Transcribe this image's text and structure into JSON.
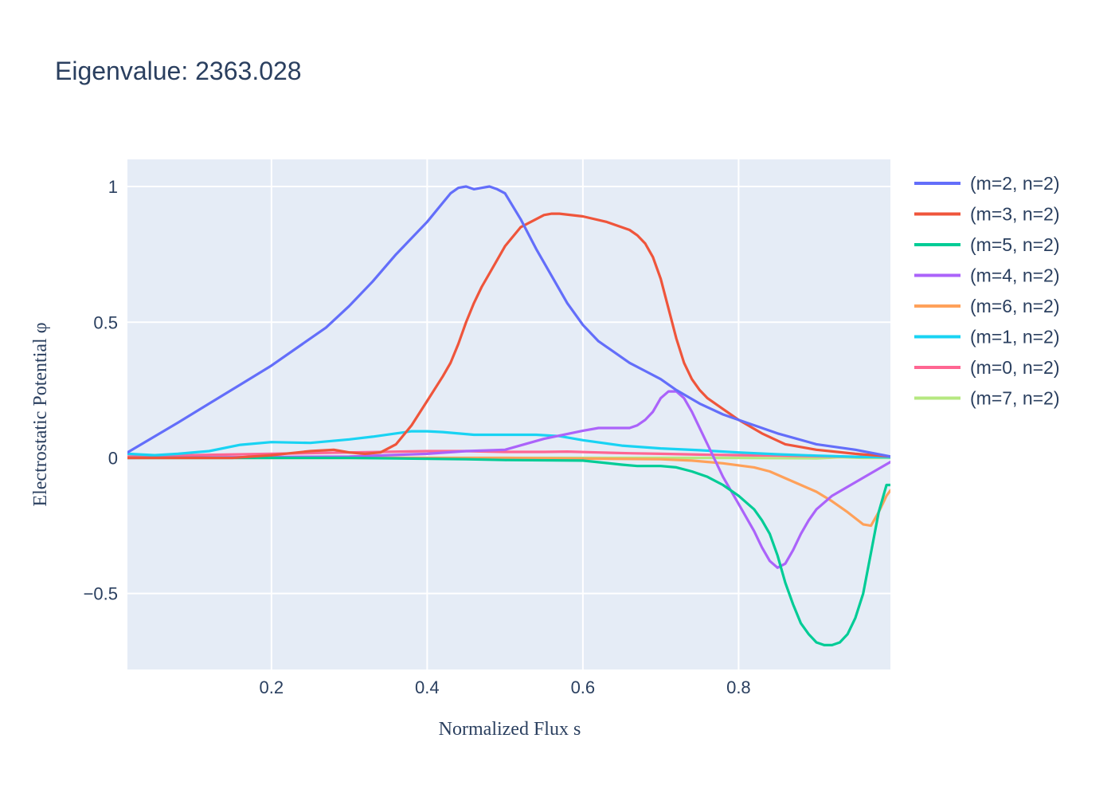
{
  "chart_data": {
    "type": "line",
    "title": "Eigenvalue: 2363.028",
    "xlabel": "Normalized Flux s",
    "ylabel": "Electrostatic Potential φ",
    "xlim": [
      0.015,
      0.995
    ],
    "ylim": [
      -0.78,
      1.1
    ],
    "x_ticks": [
      0.2,
      0.4,
      0.6,
      0.8
    ],
    "x_tick_labels": [
      "0.2",
      "0.4",
      "0.6",
      "0.8"
    ],
    "y_ticks": [
      -0.5,
      0,
      0.5,
      1
    ],
    "y_tick_labels": [
      "−0.5",
      "0",
      "0.5",
      "1"
    ],
    "grid": true,
    "legend_position": "right",
    "plot_background": "#e5ecf6",
    "series": [
      {
        "name": "(m=2, n=2)",
        "color": "#636efa",
        "x": [
          0.015,
          0.08,
          0.12,
          0.16,
          0.2,
          0.24,
          0.27,
          0.3,
          0.33,
          0.36,
          0.4,
          0.42,
          0.43,
          0.44,
          0.45,
          0.46,
          0.47,
          0.48,
          0.49,
          0.5,
          0.52,
          0.54,
          0.56,
          0.58,
          0.6,
          0.62,
          0.64,
          0.66,
          0.68,
          0.7,
          0.72,
          0.75,
          0.78,
          0.81,
          0.85,
          0.9,
          0.95,
          0.995
        ],
        "y": [
          0.02,
          0.13,
          0.2,
          0.27,
          0.34,
          0.42,
          0.48,
          0.56,
          0.65,
          0.75,
          0.87,
          0.94,
          0.975,
          0.995,
          1.0,
          0.99,
          0.995,
          1.0,
          0.99,
          0.975,
          0.88,
          0.77,
          0.67,
          0.57,
          0.49,
          0.43,
          0.39,
          0.35,
          0.32,
          0.29,
          0.25,
          0.2,
          0.16,
          0.13,
          0.09,
          0.05,
          0.03,
          0.005
        ]
      },
      {
        "name": "(m=3, n=2)",
        "color": "#EF553B",
        "x": [
          0.015,
          0.1,
          0.15,
          0.2,
          0.25,
          0.28,
          0.3,
          0.32,
          0.34,
          0.36,
          0.38,
          0.4,
          0.42,
          0.43,
          0.44,
          0.45,
          0.46,
          0.47,
          0.48,
          0.5,
          0.52,
          0.54,
          0.55,
          0.56,
          0.57,
          0.6,
          0.63,
          0.66,
          0.67,
          0.68,
          0.69,
          0.7,
          0.71,
          0.72,
          0.73,
          0.74,
          0.75,
          0.76,
          0.78,
          0.8,
          0.83,
          0.86,
          0.9,
          0.95,
          0.995
        ],
        "y": [
          0.0,
          0.0,
          0.0,
          0.01,
          0.025,
          0.03,
          0.02,
          0.015,
          0.02,
          0.05,
          0.12,
          0.21,
          0.3,
          0.35,
          0.42,
          0.5,
          0.57,
          0.63,
          0.68,
          0.78,
          0.85,
          0.88,
          0.895,
          0.9,
          0.9,
          0.89,
          0.87,
          0.84,
          0.82,
          0.79,
          0.74,
          0.66,
          0.55,
          0.44,
          0.35,
          0.29,
          0.25,
          0.22,
          0.18,
          0.14,
          0.09,
          0.05,
          0.03,
          0.015,
          0.005
        ]
      },
      {
        "name": "(m=5, n=2)",
        "color": "#00cc96",
        "x": [
          0.015,
          0.3,
          0.45,
          0.5,
          0.6,
          0.65,
          0.67,
          0.7,
          0.72,
          0.74,
          0.76,
          0.78,
          0.8,
          0.82,
          0.83,
          0.84,
          0.85,
          0.86,
          0.87,
          0.88,
          0.89,
          0.9,
          0.91,
          0.92,
          0.93,
          0.94,
          0.95,
          0.96,
          0.97,
          0.98,
          0.99,
          0.995
        ],
        "y": [
          0.0,
          0.0,
          -0.005,
          -0.008,
          -0.01,
          -0.025,
          -0.03,
          -0.03,
          -0.035,
          -0.05,
          -0.07,
          -0.1,
          -0.14,
          -0.19,
          -0.23,
          -0.28,
          -0.36,
          -0.46,
          -0.54,
          -0.61,
          -0.65,
          -0.68,
          -0.69,
          -0.69,
          -0.68,
          -0.65,
          -0.59,
          -0.5,
          -0.35,
          -0.2,
          -0.1,
          -0.1
        ]
      },
      {
        "name": "(m=4, n=2)",
        "color": "#ab63fa",
        "x": [
          0.015,
          0.3,
          0.4,
          0.45,
          0.5,
          0.55,
          0.6,
          0.62,
          0.66,
          0.67,
          0.68,
          0.69,
          0.7,
          0.71,
          0.72,
          0.73,
          0.74,
          0.76,
          0.78,
          0.8,
          0.82,
          0.83,
          0.84,
          0.85,
          0.86,
          0.87,
          0.88,
          0.89,
          0.9,
          0.92,
          0.95,
          0.98,
          0.995
        ],
        "y": [
          0.0,
          0.005,
          0.015,
          0.025,
          0.03,
          0.07,
          0.1,
          0.11,
          0.11,
          0.12,
          0.14,
          0.17,
          0.22,
          0.245,
          0.245,
          0.22,
          0.17,
          0.05,
          -0.07,
          -0.17,
          -0.27,
          -0.33,
          -0.38,
          -0.405,
          -0.39,
          -0.34,
          -0.28,
          -0.23,
          -0.19,
          -0.14,
          -0.09,
          -0.04,
          -0.015
        ]
      },
      {
        "name": "(m=6, n=2)",
        "color": "#FFA15A",
        "x": [
          0.015,
          0.5,
          0.7,
          0.74,
          0.78,
          0.82,
          0.84,
          0.86,
          0.88,
          0.9,
          0.92,
          0.94,
          0.96,
          0.97,
          0.98,
          0.99,
          0.995
        ],
        "y": [
          0.0,
          0.0,
          -0.005,
          -0.01,
          -0.02,
          -0.035,
          -0.05,
          -0.075,
          -0.1,
          -0.125,
          -0.16,
          -0.2,
          -0.245,
          -0.25,
          -0.2,
          -0.14,
          -0.12
        ]
      },
      {
        "name": "(m=1, n=2)",
        "color": "#19d3f3",
        "x": [
          0.015,
          0.05,
          0.08,
          0.12,
          0.16,
          0.2,
          0.25,
          0.3,
          0.33,
          0.36,
          0.38,
          0.4,
          0.42,
          0.46,
          0.5,
          0.54,
          0.57,
          0.6,
          0.65,
          0.7,
          0.75,
          0.8,
          0.85,
          0.9,
          0.95,
          0.995
        ],
        "y": [
          0.015,
          0.01,
          0.015,
          0.025,
          0.048,
          0.058,
          0.055,
          0.068,
          0.078,
          0.09,
          0.098,
          0.098,
          0.095,
          0.085,
          0.085,
          0.085,
          0.08,
          0.065,
          0.045,
          0.035,
          0.028,
          0.02,
          0.013,
          0.008,
          0.004,
          0.002
        ]
      },
      {
        "name": "(m=0, n=2)",
        "color": "#FF6692",
        "x": [
          0.015,
          0.1,
          0.2,
          0.3,
          0.4,
          0.45,
          0.5,
          0.55,
          0.58,
          0.62,
          0.66,
          0.7,
          0.75,
          0.8,
          0.85,
          0.9,
          0.95,
          0.995
        ],
        "y": [
          0.005,
          0.01,
          0.015,
          0.02,
          0.025,
          0.025,
          0.022,
          0.022,
          0.023,
          0.02,
          0.017,
          0.015,
          0.012,
          0.01,
          0.008,
          0.006,
          0.004,
          0.003
        ]
      },
      {
        "name": "(m=7, n=2)",
        "color": "#B6E880",
        "x": [
          0.015,
          0.2,
          0.4,
          0.6,
          0.8,
          0.9,
          0.93,
          0.96,
          0.995
        ],
        "y": [
          0.0,
          0.0,
          0.0,
          0.0,
          0.0,
          -0.002,
          0.002,
          0.0,
          0.0
        ]
      }
    ]
  }
}
